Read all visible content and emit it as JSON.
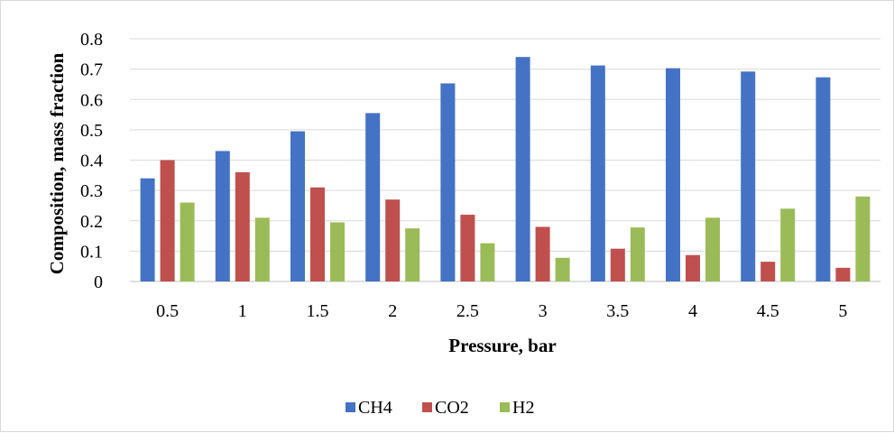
{
  "chart_data": {
    "type": "bar",
    "xlabel": "Pressure, bar",
    "ylabel": "Composition, mass fraction",
    "categories": [
      "0.5",
      "1",
      "1.5",
      "2",
      "2.5",
      "3",
      "3.5",
      "4",
      "4.5",
      "5"
    ],
    "ylim": [
      0,
      0.8
    ],
    "yticks": [
      "0",
      "0.1",
      "0.2",
      "0.3",
      "0.4",
      "0.5",
      "0.6",
      "0.7",
      "0.8"
    ],
    "grid": true,
    "legend_position": "bottom",
    "series": [
      {
        "name": "CH4",
        "color": "#4472C4",
        "values": [
          0.34,
          0.43,
          0.495,
          0.555,
          0.653,
          0.74,
          0.712,
          0.703,
          0.692,
          0.673
        ]
      },
      {
        "name": "CO2",
        "color": "#C0504D",
        "values": [
          0.4,
          0.36,
          0.31,
          0.27,
          0.22,
          0.18,
          0.108,
          0.087,
          0.065,
          0.045
        ]
      },
      {
        "name": "H2",
        "color": "#9BBB59",
        "values": [
          0.26,
          0.21,
          0.195,
          0.175,
          0.126,
          0.078,
          0.178,
          0.21,
          0.24,
          0.28
        ]
      }
    ]
  }
}
